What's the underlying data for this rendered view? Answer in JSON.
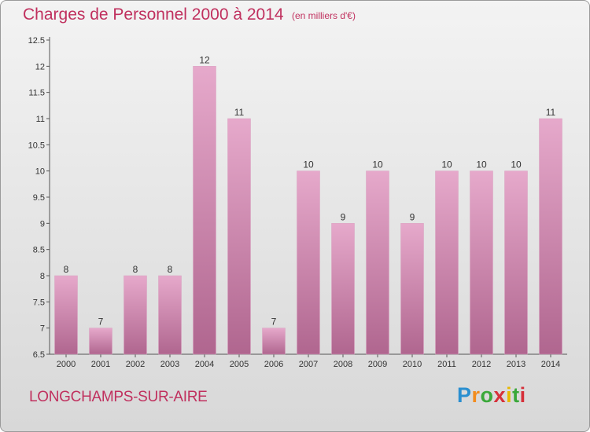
{
  "header": {
    "title": "Charges de Personnel 2000 à 2014",
    "subtitle": "(en milliers d'€)"
  },
  "footer": {
    "place": "LONGCHAMPS-SUR-AIRE",
    "logo": "Proxiti"
  },
  "colors": {
    "bar_light": "#e6a9cb",
    "bar_dark": "#b0668f",
    "text_accent": "#c0305e"
  },
  "chart_data": {
    "type": "bar",
    "categories": [
      "2000",
      "2001",
      "2002",
      "2003",
      "2004",
      "2005",
      "2006",
      "2007",
      "2008",
      "2009",
      "2010",
      "2011",
      "2012",
      "2013",
      "2014"
    ],
    "values": [
      8,
      7,
      8,
      8,
      12,
      11,
      7,
      10,
      9,
      10,
      9,
      10,
      10,
      10,
      11
    ],
    "title": "Charges de Personnel 2000 à 2014",
    "subtitle": "(en milliers d'€)",
    "ylim": [
      6.5,
      12.5
    ],
    "yticks": [
      "6.5",
      "7",
      "7.5",
      "8",
      "8.5",
      "9",
      "9.5",
      "10",
      "10.5",
      "11",
      "11.5",
      "12",
      "12.5"
    ],
    "grid": false,
    "legend": "none"
  }
}
